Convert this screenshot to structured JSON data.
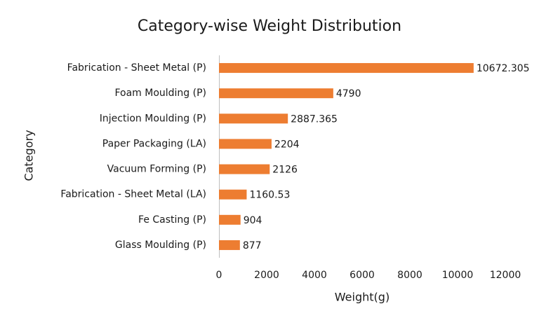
{
  "chart_data": {
    "type": "bar",
    "orientation": "horizontal",
    "title": "Category-wise Weight Distribution",
    "x_label": "Weight(g)",
    "y_label": "Category",
    "categories": [
      "Fabrication - Sheet Metal (P)",
      "Foam Moulding (P)",
      "Injection Moulding (P)",
      "Paper Packaging (LA)",
      "Vacuum Forming (P)",
      "Fabrication - Sheet Metal (LA)",
      "Fe Casting (P)",
      "Glass Moulding (P)"
    ],
    "values": [
      10672.305,
      4790,
      2887.365,
      2204,
      2126,
      1160.53,
      904,
      877
    ],
    "color": "#ed7d31",
    "xlim": [
      0,
      12000
    ],
    "xticks": [
      0,
      2000,
      4000,
      6000,
      8000,
      10000,
      12000
    ],
    "grid": false
  }
}
